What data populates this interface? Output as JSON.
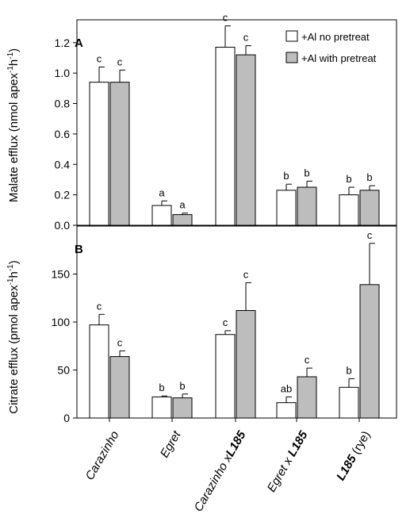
{
  "chart_data": [
    {
      "panel": "A",
      "type": "bar",
      "categories": [
        "Carazinho",
        "Egret",
        "Carazinho x L185",
        "Egret x L185",
        "L185 (rye)"
      ],
      "ylabel": "Malate efflux (nmol apex-1h-1)",
      "ylim": [
        0,
        1.35
      ],
      "yticks": [
        "0.0",
        "0.2",
        "0.4",
        "0.6",
        "0.8",
        "1.0",
        "1.2"
      ],
      "grid": false,
      "legend_position": "top-right",
      "series": [
        {
          "name": "+Al no pretreat",
          "color": "#ffffff",
          "values": [
            0.94,
            0.13,
            1.17,
            0.23,
            0.2
          ],
          "errors": [
            0.1,
            0.03,
            0.14,
            0.04,
            0.05
          ],
          "letters": [
            "c",
            "a",
            "c",
            "b",
            "b"
          ]
        },
        {
          "name": "+Al with pretreat",
          "color": "#bdbdbd",
          "values": [
            0.94,
            0.07,
            1.12,
            0.25,
            0.23
          ],
          "errors": [
            0.08,
            0.01,
            0.06,
            0.04,
            0.03
          ],
          "letters": [
            "c",
            "a",
            "c",
            "b",
            "b"
          ]
        }
      ]
    },
    {
      "panel": "B",
      "type": "bar",
      "categories": [
        "Carazinho",
        "Egret",
        "Carazinho x L185",
        "Egret x L185",
        "L185 (rye)"
      ],
      "ylabel": "Citrate efflux (pmol apex-1h-1)",
      "ylim": [
        0,
        200
      ],
      "yticks": [
        "0",
        "50",
        "100",
        "150"
      ],
      "grid": false,
      "series": [
        {
          "name": "+Al no pretreat",
          "color": "#ffffff",
          "values": [
            97,
            22,
            87,
            16,
            32
          ],
          "errors": [
            11,
            1,
            4,
            6,
            9
          ],
          "letters": [
            "c",
            "b",
            "c",
            "ab",
            "b"
          ]
        },
        {
          "name": "+Al with pretreat",
          "color": "#bdbdbd",
          "values": [
            64,
            21,
            112,
            43,
            139
          ],
          "errors": [
            6,
            4,
            29,
            9,
            43
          ],
          "letters": [
            "c",
            "b",
            "c",
            "c",
            "c"
          ]
        }
      ]
    }
  ],
  "xticklabels": [
    {
      "parts": [
        {
          "text": "Carazinho",
          "weight": "normal"
        }
      ]
    },
    {
      "parts": [
        {
          "text": "Egret",
          "weight": "normal"
        }
      ]
    },
    {
      "parts": [
        {
          "text": "Carazinho x",
          "weight": "normal"
        },
        {
          "text": "L185",
          "weight": "bold"
        }
      ]
    },
    {
      "parts": [
        {
          "text": "Egret x ",
          "weight": "normal"
        },
        {
          "text": "L185",
          "weight": "bold"
        }
      ]
    },
    {
      "parts": [
        {
          "text": "L185",
          "weight": "bold"
        },
        {
          "text": " (rye)",
          "weight": "normal",
          "upright": true
        }
      ]
    }
  ],
  "ylabels": {
    "malate": {
      "pre": "Malate efflux (nmol apex",
      "sup1": "-1",
      "mid": "h",
      "sup2": "-1",
      "post": ")"
    },
    "citrate": {
      "pre": "Citrate efflux (pmol apex",
      "sup1": "-1",
      "mid": "h",
      "sup2": "-1",
      "post": ")"
    }
  },
  "colors": {
    "axis": "#000000",
    "no_pretreat": "#ffffff",
    "with_pretreat": "#bdbdbd"
  }
}
